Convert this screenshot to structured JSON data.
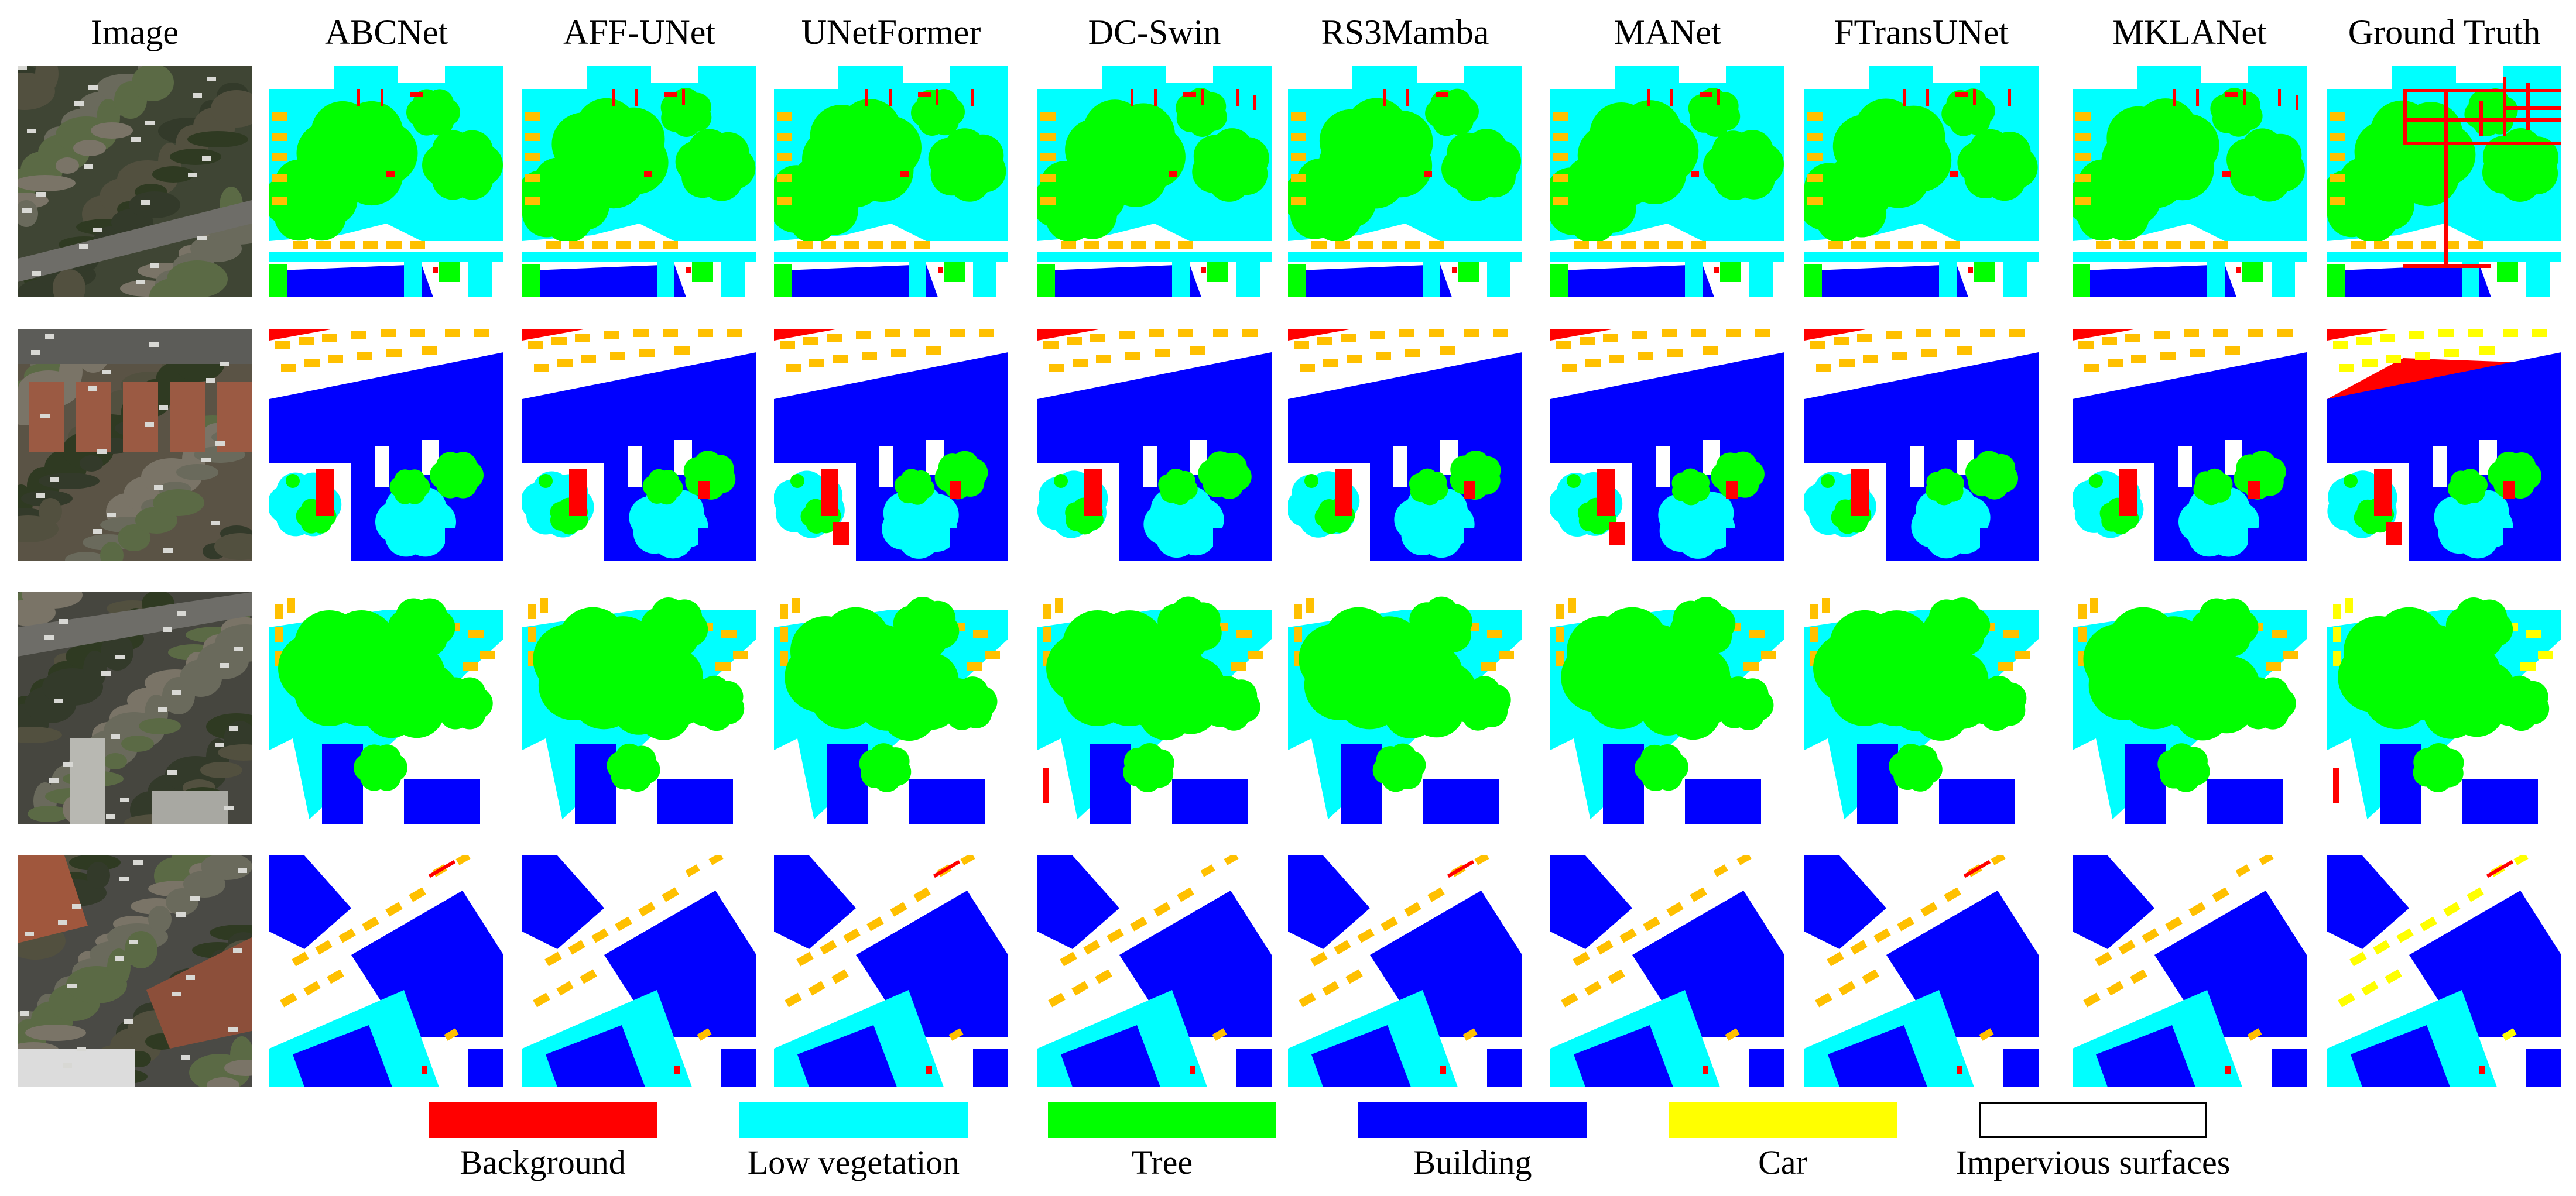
{
  "columns": [
    "Image",
    "ABCNet",
    "AFF-UNet",
    "UNetFormer",
    "DC-Swin",
    "RS3Mamba",
    "MANet",
    "FTransUNet",
    "MKLANet",
    "Ground Truth"
  ],
  "legend": [
    {
      "label": "Background",
      "color": "#ff0000"
    },
    {
      "label": "Low vegetation",
      "color": "#00ffff"
    },
    {
      "label": "Tree",
      "color": "#00ff00"
    },
    {
      "label": "Building",
      "color": "#0000ff"
    },
    {
      "label": "Car",
      "color": "#ffff00"
    },
    {
      "label": "Impervious surfaces",
      "color": "#ffffff"
    }
  ],
  "palette": {
    "background": "#ff0000",
    "low_vegetation": "#00ffff",
    "tree": "#00ff00",
    "building": "#0000ff",
    "car": "#ffff00",
    "car_pred": "#ffc000",
    "impervious": "#ffffff",
    "swatch_border": "#000000"
  },
  "rows": 4
}
